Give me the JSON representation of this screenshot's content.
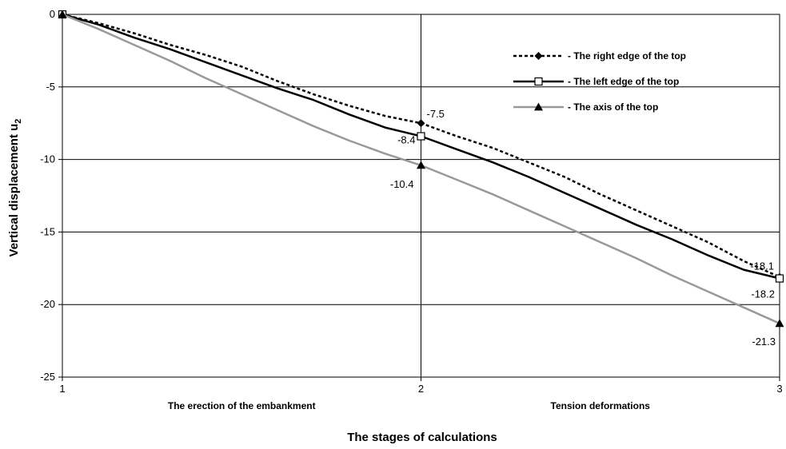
{
  "chart_data": {
    "type": "line",
    "xlabel": "The stages of calculations",
    "ylabel": "Vertical displacement u",
    "ylabel_sub": "2",
    "ylabel_unit": "",
    "x_ticks": [
      "1",
      "2",
      "3"
    ],
    "xlim": [
      1,
      3
    ],
    "ylim": [
      -25,
      0
    ],
    "y_ticks": [
      0,
      -5,
      -10,
      -15,
      -20,
      -25
    ],
    "grid": true,
    "legend_position": "top-right",
    "stage_labels": [
      {
        "x": 1.5,
        "text": "The erection of the embankment"
      },
      {
        "x": 2.5,
        "text": "Tension deformations"
      }
    ],
    "series": [
      {
        "name": "The right edge of the top",
        "style": "dotted",
        "color": "#000000",
        "marker": "diamond",
        "x": [
          1,
          1.1,
          1.2,
          1.3,
          1.4,
          1.5,
          1.6,
          1.7,
          1.8,
          1.9,
          2,
          2.1,
          2.2,
          2.3,
          2.4,
          2.5,
          2.6,
          2.7,
          2.8,
          2.9,
          3
        ],
        "values": [
          0,
          -0.6,
          -1.3,
          -2.1,
          -2.8,
          -3.6,
          -4.6,
          -5.5,
          -6.3,
          -7.0,
          -7.5,
          -8.4,
          -9.2,
          -10.2,
          -11.2,
          -12.4,
          -13.5,
          -14.6,
          -15.7,
          -17.0,
          -18.1
        ],
        "markers_at": [
          1,
          2,
          3
        ],
        "labels": [
          {
            "x": 2,
            "text": "-7.5"
          },
          {
            "x": 3,
            "text": "-18.1"
          }
        ]
      },
      {
        "name": "The left edge of the top",
        "style": "solid",
        "color": "#000000",
        "marker": "square",
        "x": [
          1,
          1.1,
          1.2,
          1.3,
          1.4,
          1.5,
          1.6,
          1.7,
          1.8,
          1.9,
          2,
          2.1,
          2.2,
          2.3,
          2.4,
          2.5,
          2.6,
          2.7,
          2.8,
          2.9,
          3
        ],
        "values": [
          0,
          -0.7,
          -1.6,
          -2.4,
          -3.3,
          -4.2,
          -5.1,
          -5.9,
          -6.9,
          -7.8,
          -8.4,
          -9.3,
          -10.2,
          -11.2,
          -12.3,
          -13.4,
          -14.5,
          -15.5,
          -16.6,
          -17.6,
          -18.2
        ],
        "markers_at": [
          1,
          2,
          3
        ],
        "labels": [
          {
            "x": 2,
            "text": "-8.4"
          },
          {
            "x": 3,
            "text": "-18.2"
          }
        ]
      },
      {
        "name": "The axis of the top",
        "style": "solid",
        "color": "#999999",
        "marker": "triangle",
        "x": [
          1,
          1.1,
          1.2,
          1.3,
          1.4,
          1.5,
          1.6,
          1.7,
          1.8,
          1.9,
          2,
          2.1,
          2.2,
          2.3,
          2.4,
          2.5,
          2.6,
          2.7,
          2.8,
          2.9,
          3
        ],
        "values": [
          0,
          -1.0,
          -2.1,
          -3.2,
          -4.4,
          -5.5,
          -6.6,
          -7.7,
          -8.7,
          -9.6,
          -10.4,
          -11.4,
          -12.4,
          -13.5,
          -14.6,
          -15.7,
          -16.8,
          -18.0,
          -19.1,
          -20.2,
          -21.3
        ],
        "markers_at": [
          1,
          2,
          3
        ],
        "labels": [
          {
            "x": 2,
            "text": "-10.4"
          },
          {
            "x": 3,
            "text": "-21.3"
          }
        ]
      }
    ]
  }
}
